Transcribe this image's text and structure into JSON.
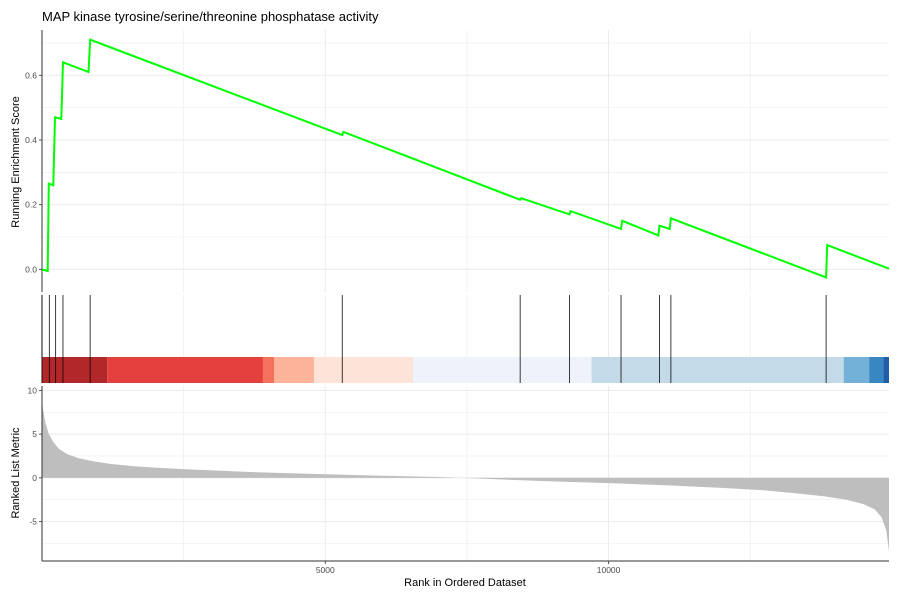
{
  "chart_data": {
    "type": "line",
    "title": "MAP kinase tyrosine/serine/threonine phosphatase activity",
    "xlabel": "Rank in Ordered Dataset",
    "ylabel_es": "Running Enrichment Score",
    "ylabel_rank": "Ranked List Metric",
    "xlim": [
      0,
      14950
    ],
    "x_ticks": [
      5000,
      10000
    ],
    "x_tick_labels": [
      "5000",
      "10000"
    ],
    "es_ylim": [
      -0.07,
      0.74
    ],
    "es_y_ticks": [
      0.0,
      0.2,
      0.4,
      0.6
    ],
    "es_y_tick_labels": [
      "0.0",
      "0.2",
      "0.4",
      "0.6"
    ],
    "rank_ylim": [
      -9.5,
      10.5
    ],
    "rank_y_ticks": [
      10,
      5,
      0,
      -5
    ],
    "rank_y_tick_labels": [
      "10",
      "5",
      "0",
      "-5"
    ],
    "grid": true,
    "series": [
      {
        "color": "#00ff00",
        "x": [
          0,
          100,
          120,
          200,
          230,
          340,
          370,
          820,
          850,
          5300,
          5320,
          8440,
          8460,
          9310,
          9330,
          10220,
          10240,
          10880,
          10900,
          11080,
          11100,
          13840,
          13860,
          14950
        ],
        "values": [
          0.0,
          -0.005,
          0.265,
          0.26,
          0.47,
          0.465,
          0.64,
          0.61,
          0.71,
          0.415,
          0.425,
          0.215,
          0.22,
          0.17,
          0.18,
          0.125,
          0.15,
          0.105,
          0.135,
          0.125,
          0.158,
          -0.025,
          0.075,
          0.002
        ]
      }
    ],
    "hits": [
      0,
      130,
      240,
      370,
      850,
      5300,
      8440,
      9310,
      10220,
      10900,
      11100,
      13840
    ],
    "hit_color": "#000000",
    "color_bands": [
      {
        "start": 0,
        "end": 1150,
        "color": "#b2272a"
      },
      {
        "start": 1150,
        "end": 3900,
        "color": "#e3403e"
      },
      {
        "start": 3900,
        "end": 4100,
        "color": "#f4725b"
      },
      {
        "start": 4100,
        "end": 4800,
        "color": "#fdb39a"
      },
      {
        "start": 4800,
        "end": 6550,
        "color": "#fde3d8"
      },
      {
        "start": 6550,
        "end": 9700,
        "color": "#eef2fa"
      },
      {
        "start": 9700,
        "end": 14150,
        "color": "#c3dbe8"
      },
      {
        "start": 14150,
        "end": 14600,
        "color": "#74b1d8"
      },
      {
        "start": 14600,
        "end": 14850,
        "color": "#3987c2"
      },
      {
        "start": 14850,
        "end": 14950,
        "color": "#1f5fa8"
      }
    ],
    "ranked_metric": {
      "color": "#bebebe",
      "x": [
        0,
        20,
        60,
        120,
        200,
        300,
        450,
        650,
        900,
        1200,
        1600,
        2000,
        2500,
        3000,
        3500,
        4000,
        5000,
        6000,
        7000,
        7400,
        7600,
        8000,
        9000,
        10000,
        11000,
        12000,
        12700,
        13300,
        13800,
        14200,
        14500,
        14700,
        14820,
        14900,
        14950
      ],
      "values": [
        8.8,
        7.8,
        6.3,
        5.0,
        4.1,
        3.3,
        2.7,
        2.25,
        1.9,
        1.6,
        1.35,
        1.18,
        1.0,
        0.85,
        0.72,
        0.6,
        0.42,
        0.25,
        0.1,
        0.0,
        -0.05,
        -0.15,
        -0.4,
        -0.6,
        -0.85,
        -1.15,
        -1.4,
        -1.75,
        -2.1,
        -2.5,
        -3.0,
        -3.6,
        -4.5,
        -6.0,
        -8.4
      ]
    }
  }
}
